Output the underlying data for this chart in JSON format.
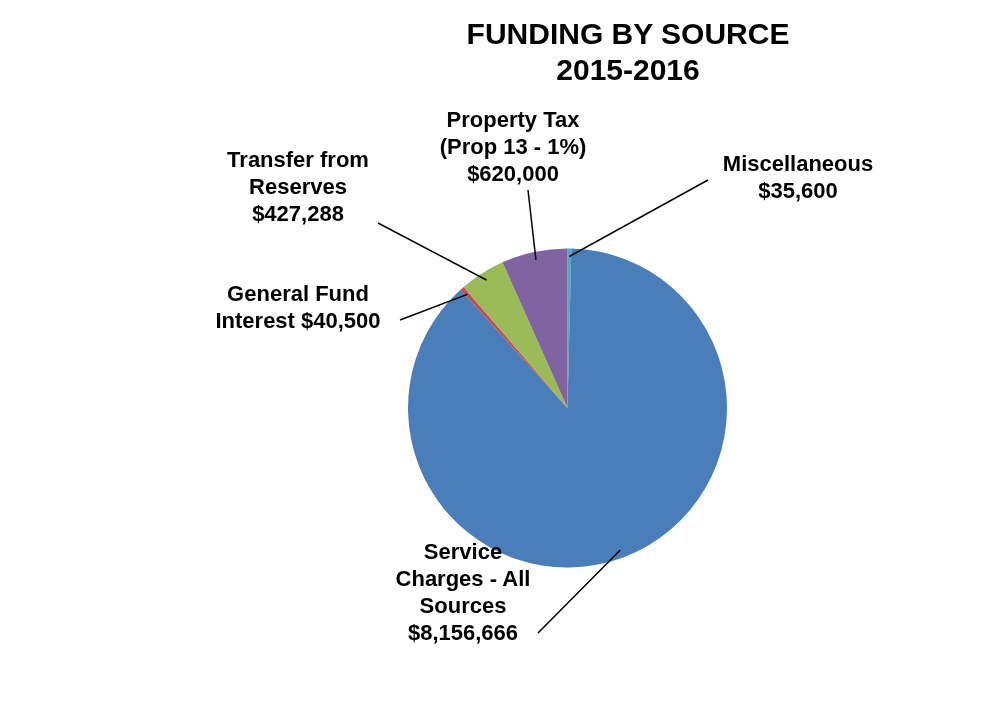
{
  "chart_data": {
    "type": "pie",
    "title": "FUNDING BY SOURCE",
    "subtitle": "2015-2016",
    "categories": [
      "Miscellaneous",
      "Service Charges - All Sources",
      "General Fund Interest",
      "Transfer from Reserves",
      "Property Tax (Prop 13 - 1%)"
    ],
    "values": [
      35600,
      8156666,
      40500,
      427288,
      620000
    ],
    "value_labels": [
      "$35,600",
      "$8,156,666",
      "$40,500",
      "$427,288",
      "$620,000"
    ],
    "colors": [
      "#4bacc6",
      "#4a7ebb",
      "#c0504d",
      "#9bbb59",
      "#8064a2"
    ],
    "legend": false
  }
}
